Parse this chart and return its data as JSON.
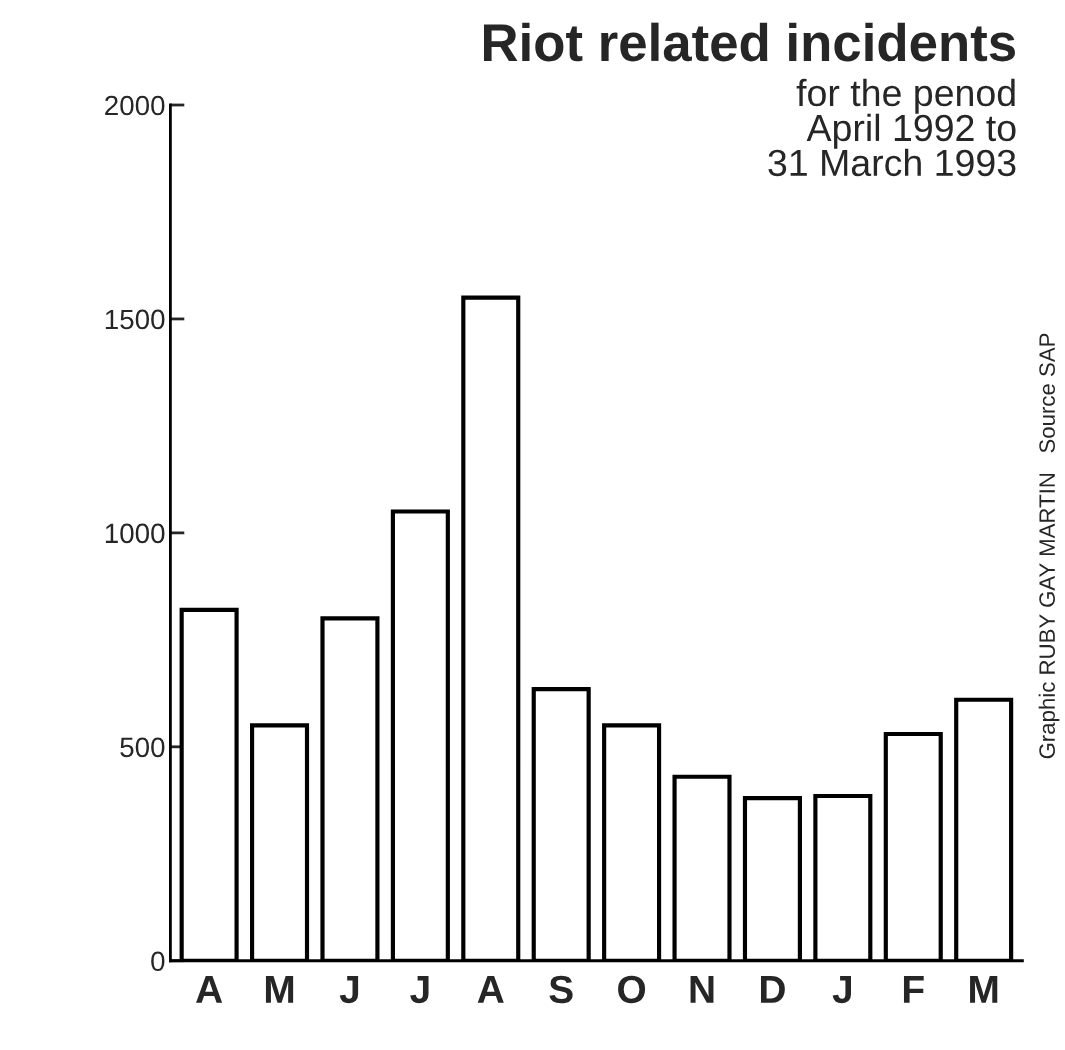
{
  "chart_data": {
    "type": "bar",
    "title": "Riot related incidents",
    "subtitle": "for the penod\nApril 1992 to\n31 March 1993",
    "categories": [
      "A",
      "M",
      "J",
      "J",
      "A",
      "S",
      "O",
      "N",
      "D",
      "J",
      "F",
      "M"
    ],
    "values": [
      820,
      550,
      800,
      1050,
      1550,
      635,
      550,
      430,
      380,
      385,
      530,
      610
    ],
    "color": "#ffffff",
    "ylim": [
      0,
      2000
    ],
    "yticks": [
      0,
      500,
      1000,
      1500,
      2000
    ],
    "grid": false,
    "annotations": [
      "Graphic RUBY GAY MARTIN   Source SAP"
    ]
  }
}
